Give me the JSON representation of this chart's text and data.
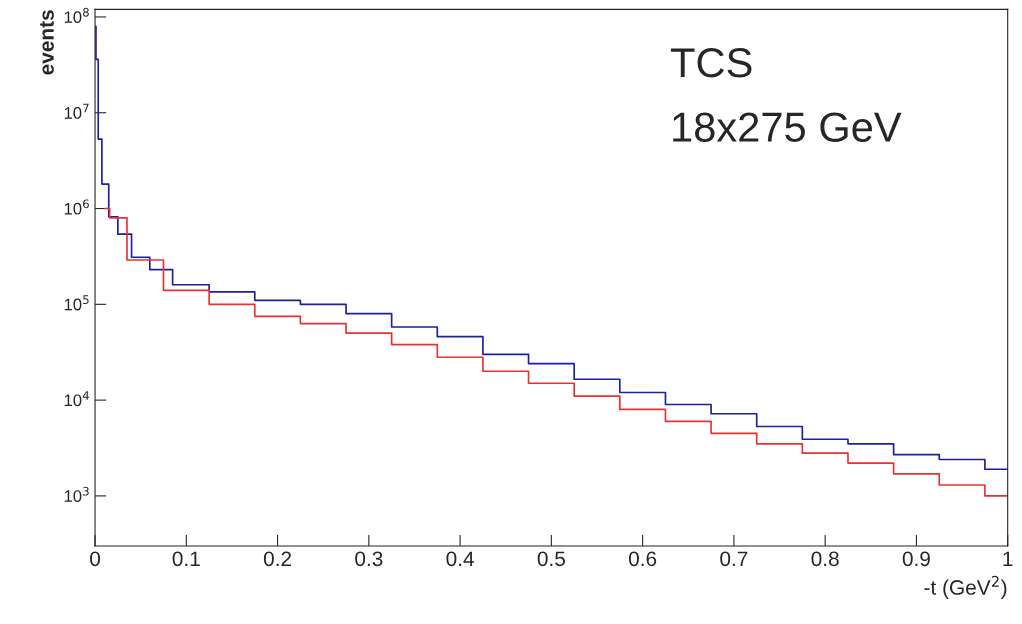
{
  "chart_data": {
    "type": "step",
    "log": "y",
    "xlabel": "-t (GeV$^{2}$)",
    "ylabel": "events",
    "annotations": [
      "TCS",
      "18x275 GeV"
    ],
    "xlim": [
      0,
      1
    ],
    "ylim": [
      300,
      120000000
    ],
    "xticks": [
      0,
      0.1,
      0.2,
      0.3,
      0.4,
      0.5,
      0.6,
      0.7,
      0.8,
      0.9,
      1
    ],
    "yticks": [
      {
        "value": 1000,
        "label": "10$^{3}$"
      },
      {
        "value": 10000,
        "label": "10$^{4}$"
      },
      {
        "value": 100000,
        "label": "10$^{5}$"
      },
      {
        "value": 1000000,
        "label": "10$^{6}$"
      },
      {
        "value": 10000000,
        "label": "10$^{7}$"
      },
      {
        "value": 100000000,
        "label": "10$^{8}$"
      }
    ],
    "grid": false,
    "legend": false,
    "series": [
      {
        "color": "#1f1fa0",
        "x": [
          0,
          0.002,
          0.005,
          0.01,
          0.02,
          0.03,
          0.05,
          0.07,
          0.1,
          0.15,
          0.2,
          0.25,
          0.3,
          0.35,
          0.4,
          0.45,
          0.5,
          0.55,
          0.6,
          0.65,
          0.7,
          0.75,
          0.8,
          0.85,
          0.9,
          0.95,
          1.0
        ],
        "values": [
          80000000,
          36000000,
          5300000,
          1800000,
          820000,
          540000,
          310000,
          230000,
          160000,
          135000,
          110000,
          100000,
          80000,
          58000,
          46000,
          30000,
          24000,
          16500,
          12000,
          9000,
          7200,
          5300,
          3900,
          3500,
          2700,
          2400,
          1900
        ]
      },
      {
        "color": "#e83232",
        "x": [
          0.011,
          0.012,
          0.02,
          0.05,
          0.1,
          0.15,
          0.2,
          0.25,
          0.3,
          0.35,
          0.4,
          0.45,
          0.5,
          0.55,
          0.6,
          0.65,
          0.7,
          0.75,
          0.8,
          0.85,
          0.9,
          0.95,
          1.0
        ],
        "values": [
          1000000,
          1000000,
          800000,
          290000,
          140000,
          100000,
          75000,
          63000,
          50000,
          38000,
          28000,
          20000,
          15000,
          11000,
          8000,
          6000,
          4500,
          3500,
          2800,
          2200,
          1700,
          1300,
          1000
        ]
      }
    ]
  }
}
